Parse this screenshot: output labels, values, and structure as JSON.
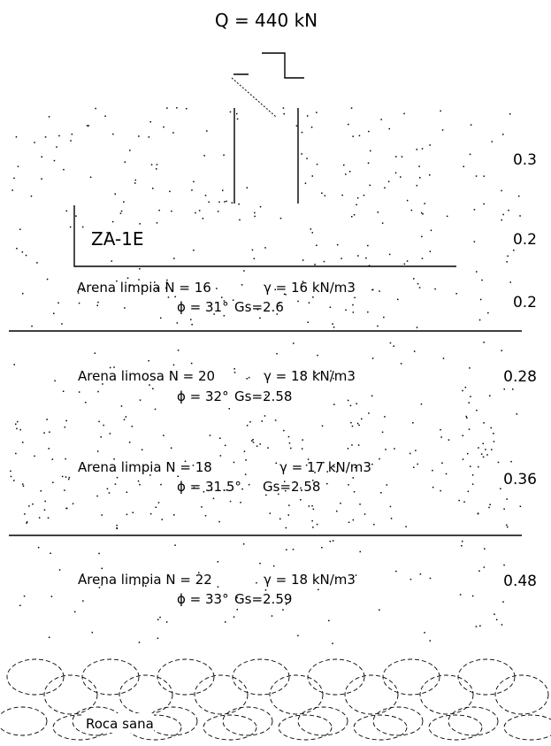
{
  "load": "Q = 440 kN",
  "footing": "ZA-1E",
  "layers": [
    {
      "name": "Arena limpia N = 16",
      "gamma": "γ = 16 kN/m3",
      "phi": "ϕ = 31°",
      "gs": "Gs=2.6"
    },
    {
      "name": "Arena limosa N = 20",
      "gamma": "γ = 18 kN/m3",
      "phi": "ϕ = 32°",
      "gs": "Gs=2.58"
    },
    {
      "name": "Arena limpia N = 18",
      "gamma": "γ = 17 kN/m3",
      "phi": "ϕ = 31.5°",
      "gs": "Gs=2.58"
    },
    {
      "name": "Arena limpia N = 22",
      "gamma": "γ = 18 kN/m3",
      "phi": "ϕ = 33°",
      "gs": "Gs=2.59"
    }
  ],
  "depths": [
    "0.3",
    "0.2",
    "0.2",
    "0.28",
    "0.36",
    "0.48"
  ],
  "rock": "Roca sana"
}
